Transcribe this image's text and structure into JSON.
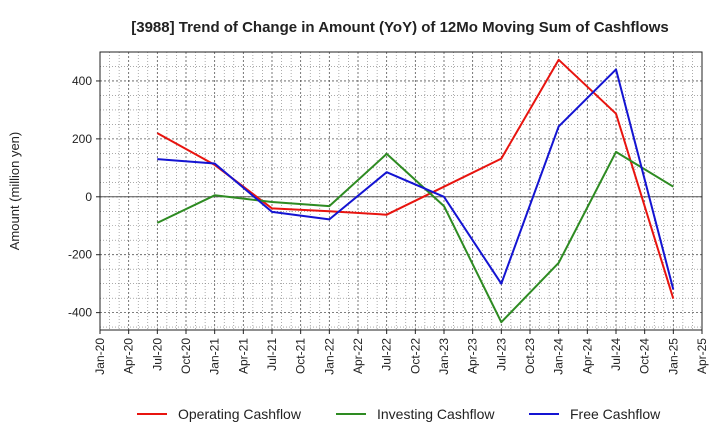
{
  "chart_data": {
    "type": "line",
    "title": "[3988]  Trend of Change in Amount (YoY) of 12Mo Moving Sum of Cashflows",
    "xlabel": "",
    "ylabel": "Amount (million yen)",
    "ylim": [
      -460,
      500
    ],
    "yticks": [
      -400,
      -200,
      0,
      200,
      400
    ],
    "grid": true,
    "legend_position": "bottom",
    "x_ticks": [
      "Jan-20",
      "Apr-20",
      "Jul-20",
      "Oct-20",
      "Jan-21",
      "Apr-21",
      "Jul-21",
      "Oct-21",
      "Jan-22",
      "Apr-22",
      "Jul-22",
      "Oct-22",
      "Jan-23",
      "Apr-23",
      "Jul-23",
      "Oct-23",
      "Jan-24",
      "Apr-24",
      "Jul-24",
      "Oct-24",
      "Jan-25",
      "Apr-25"
    ],
    "series": [
      {
        "name": "Operating Cashflow",
        "color": "#e8140f",
        "points": [
          {
            "x": "Jul-20",
            "y": 220
          },
          {
            "x": "Jan-21",
            "y": 110
          },
          {
            "x": "Jul-21",
            "y": -40
          },
          {
            "x": "Jan-22",
            "y": -50
          },
          {
            "x": "Jul-22",
            "y": -62
          },
          {
            "x": "Jan-23",
            "y": 35
          },
          {
            "x": "Jul-23",
            "y": 132
          },
          {
            "x": "Jan-24",
            "y": 473
          },
          {
            "x": "Jul-24",
            "y": 287
          },
          {
            "x": "Jan-25",
            "y": -352
          }
        ]
      },
      {
        "name": "Investing Cashflow",
        "color": "#2e8b22",
        "points": [
          {
            "x": "Jul-20",
            "y": -90
          },
          {
            "x": "Jan-21",
            "y": 5
          },
          {
            "x": "Jul-21",
            "y": -18
          },
          {
            "x": "Jan-22",
            "y": -32
          },
          {
            "x": "Jul-22",
            "y": 148
          },
          {
            "x": "Jan-23",
            "y": -32
          },
          {
            "x": "Jul-23",
            "y": -433
          },
          {
            "x": "Jan-24",
            "y": -228
          },
          {
            "x": "Jul-24",
            "y": 155
          },
          {
            "x": "Jan-25",
            "y": 35
          }
        ]
      },
      {
        "name": "Free Cashflow",
        "color": "#1414d2",
        "points": [
          {
            "x": "Jul-20",
            "y": 130
          },
          {
            "x": "Jan-21",
            "y": 115
          },
          {
            "x": "Jul-21",
            "y": -52
          },
          {
            "x": "Jan-22",
            "y": -78
          },
          {
            "x": "Jul-22",
            "y": 85
          },
          {
            "x": "Jan-23",
            "y": 0
          },
          {
            "x": "Jul-23",
            "y": -300
          },
          {
            "x": "Jan-24",
            "y": 243
          },
          {
            "x": "Jul-24",
            "y": 440
          },
          {
            "x": "Jan-25",
            "y": -320
          }
        ]
      }
    ]
  }
}
